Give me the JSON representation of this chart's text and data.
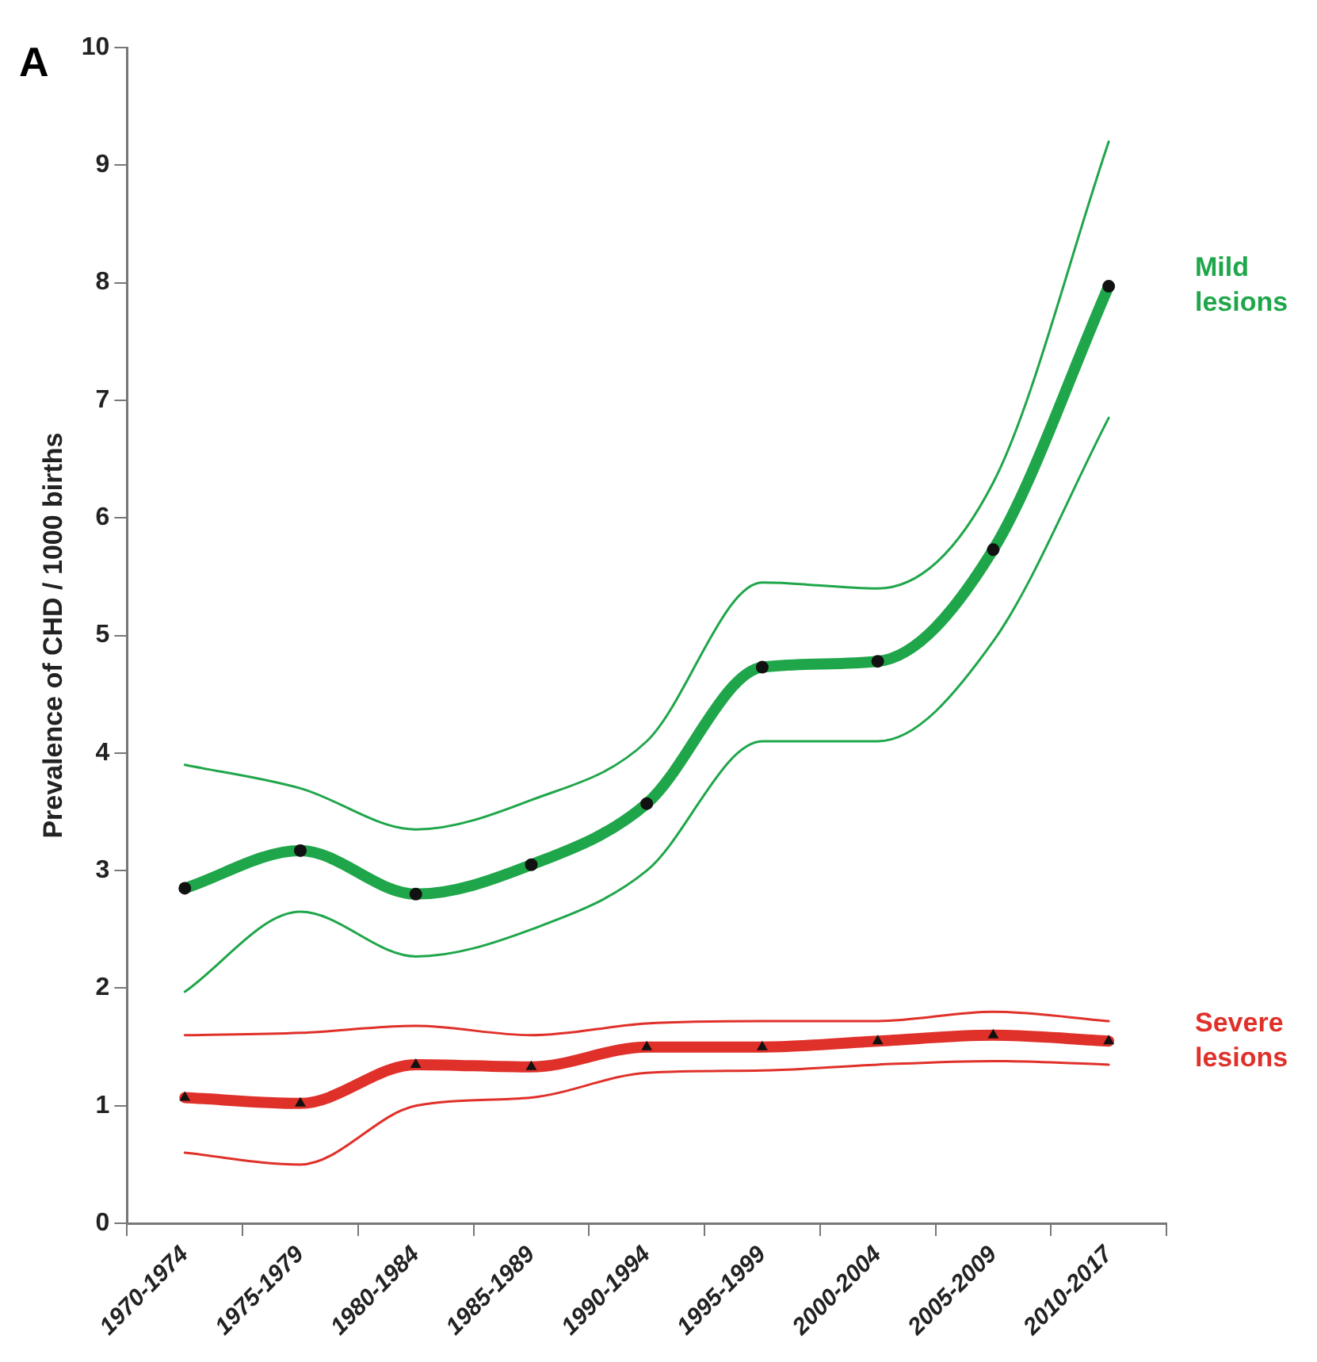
{
  "chart_data": {
    "type": "line",
    "ylabel": "Prevalence of CHD / 1000 births",
    "annotations": [
      "A"
    ],
    "categories": [
      "1970-1974",
      "1975-1979",
      "1980-1984",
      "1985-1989",
      "1990-1994",
      "1995-1999",
      "2000-2004",
      "2005-2009",
      "2010-2017"
    ],
    "ylim": [
      0,
      10
    ],
    "yticks": [
      0,
      1,
      2,
      3,
      4,
      5,
      6,
      7,
      8,
      9,
      10
    ],
    "grid": false,
    "legend": false,
    "line_style": "solid",
    "series": [
      {
        "color": "#1fa64a",
        "marker": "none",
        "values": [
          3.9,
          3.7,
          3.35,
          3.6,
          4.1,
          5.45,
          5.4,
          6.3,
          9.2
        ]
      },
      {
        "color": "#1fa64a",
        "marker": "none",
        "values": [
          1.97,
          2.65,
          2.27,
          2.5,
          3.0,
          4.1,
          4.1,
          4.95,
          6.85
        ]
      },
      {
        "color": "#e0302a",
        "marker": "none",
        "values": [
          1.6,
          1.62,
          1.68,
          1.6,
          1.7,
          1.72,
          1.72,
          1.8,
          1.72
        ]
      },
      {
        "color": "#e0302a",
        "marker": "none",
        "values": [
          0.6,
          0.5,
          1.0,
          1.07,
          1.28,
          1.3,
          1.35,
          1.38,
          1.35
        ]
      },
      {
        "name": "Mild lesions",
        "color": "#1fa64a",
        "marker": "circle",
        "values": [
          2.85,
          3.17,
          2.8,
          3.05,
          3.57,
          4.73,
          4.78,
          5.73,
          7.97
        ]
      },
      {
        "name": "Severe lesions",
        "color": "#e0302a",
        "marker": "triangle",
        "values": [
          1.07,
          1.02,
          1.35,
          1.33,
          1.5,
          1.5,
          1.55,
          1.6,
          1.55
        ]
      }
    ]
  }
}
